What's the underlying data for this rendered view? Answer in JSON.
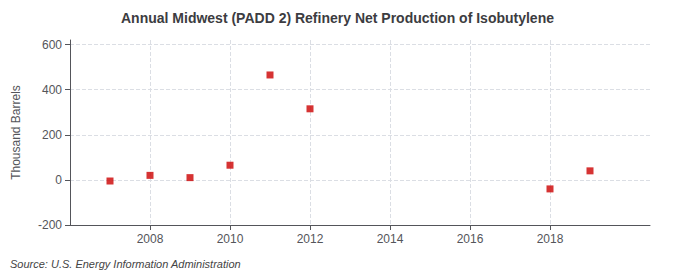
{
  "chart_data": {
    "type": "scatter",
    "title": "Annual Midwest (PADD 2) Refinery Net Production of Isobutylene",
    "ylabel": "Thousand Barrels",
    "annotation": "Source: U.S. Energy Information Administration",
    "x": [
      2007,
      2008,
      2009,
      2010,
      2011,
      2012,
      2018,
      2019
    ],
    "values": [
      -5,
      20,
      10,
      65,
      465,
      315,
      -40,
      40
    ],
    "color": "#cc0000",
    "marker": "square",
    "xlim": [
      2006.0,
      2020.5
    ],
    "ylim": [
      -200,
      620
    ],
    "xticks": [
      2008,
      2010,
      2012,
      2014,
      2016,
      2018
    ],
    "yticks": [
      -200,
      0,
      200,
      400,
      600
    ],
    "grid": true
  }
}
